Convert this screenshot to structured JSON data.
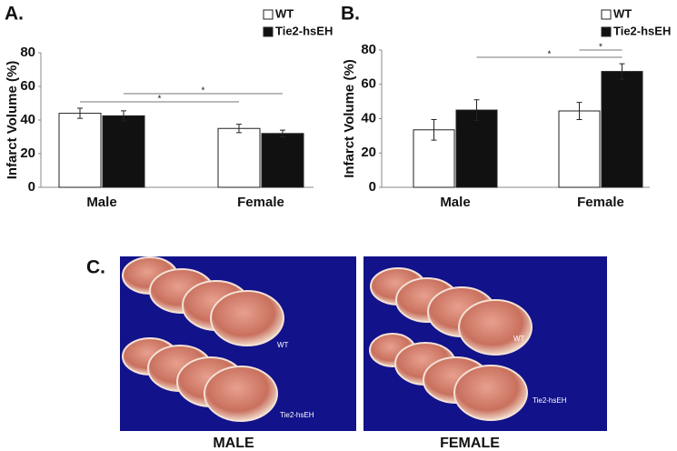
{
  "chart_data": [
    {
      "type": "bar",
      "panel_label": "A.",
      "y_label": "Infarct Volume (%)",
      "categories": [
        "Male",
        "Female"
      ],
      "series": [
        {
          "name": "WT",
          "color": "#ffffff",
          "values": [
            44,
            35
          ],
          "errors": [
            3,
            2.5
          ]
        },
        {
          "name": "Tie2-hsEH",
          "color": "#111111",
          "values": [
            42.5,
            32
          ],
          "errors": [
            3,
            2
          ]
        }
      ],
      "ylim": [
        0,
        80
      ],
      "yticks": [
        0,
        20,
        40,
        60,
        80
      ],
      "annotations": [
        {
          "text": "*",
          "from": [
            0,
            0
          ],
          "to": [
            0,
            1
          ]
        },
        {
          "text": "*",
          "from": [
            1,
            0
          ],
          "to": [
            1,
            1
          ]
        }
      ]
    },
    {
      "type": "bar",
      "panel_label": "B.",
      "y_label": "Infarct Volume (%)",
      "categories": [
        "Male",
        "Female"
      ],
      "series": [
        {
          "name": "WT",
          "color": "#ffffff",
          "values": [
            33.5,
            44.5
          ],
          "errors": [
            6,
            5
          ]
        },
        {
          "name": "Tie2-hsEH",
          "color": "#111111",
          "values": [
            45,
            67.5
          ],
          "errors": [
            6,
            4.5
          ]
        }
      ],
      "ylim": [
        0,
        80
      ],
      "yticks": [
        0,
        20,
        40,
        60,
        80
      ],
      "annotations": [
        {
          "text": "*",
          "from": [
            1,
            0
          ],
          "to": [
            1,
            1
          ]
        },
        {
          "text": "*",
          "from": [
            0,
            1
          ],
          "to": [
            1,
            1
          ]
        }
      ]
    }
  ],
  "photos": {
    "panel_label": "C.",
    "images": [
      {
        "caption": "MALE",
        "labels": [
          "WT",
          "Tie2-hsEH"
        ]
      },
      {
        "caption": "FEMALE",
        "labels": [
          "WT",
          "Tie2-hsEH"
        ]
      }
    ]
  }
}
